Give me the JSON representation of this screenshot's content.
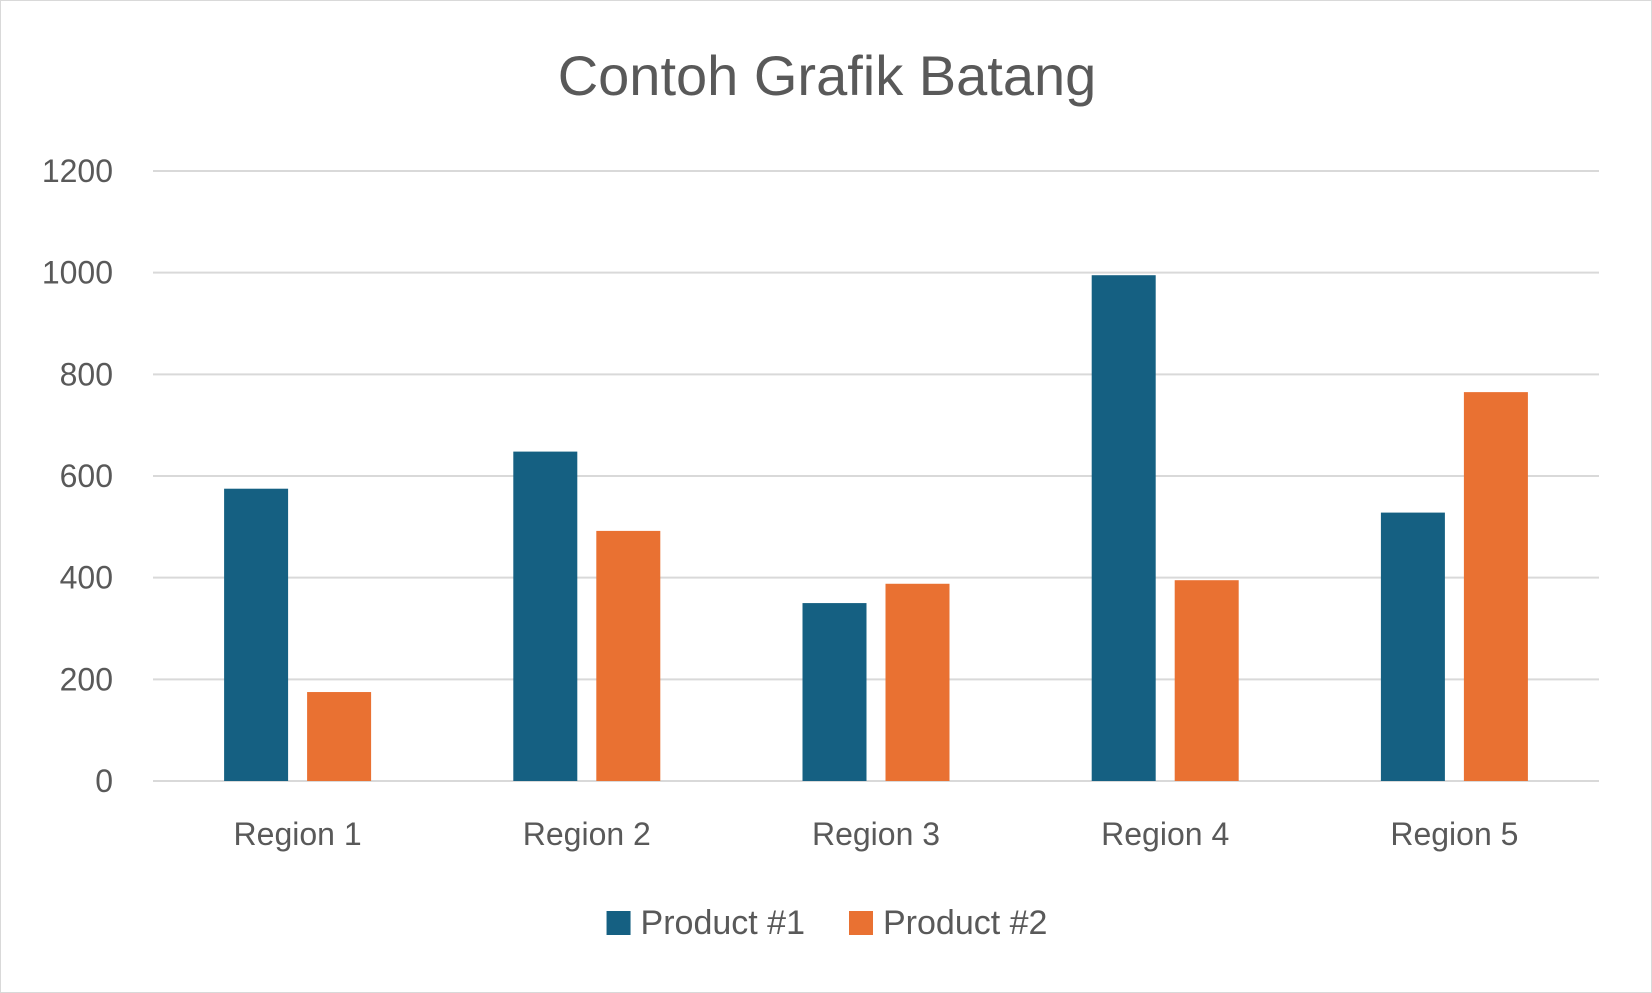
{
  "chart_data": {
    "type": "bar",
    "title": "Contoh Grafik Batang",
    "categories": [
      "Region 1",
      "Region 2",
      "Region 3",
      "Region 4",
      "Region 5"
    ],
    "series": [
      {
        "name": "Product #1",
        "color": "#156082",
        "values": [
          575,
          648,
          350,
          995,
          528
        ]
      },
      {
        "name": "Product #2",
        "color": "#E97132",
        "values": [
          175,
          492,
          388,
          395,
          765
        ]
      }
    ],
    "ylim": [
      0,
      1200
    ],
    "yticks": [
      0,
      200,
      400,
      600,
      800,
      1000,
      1200
    ],
    "grid": true,
    "legend_position": "bottom",
    "gridline_color": "#d9d9d9",
    "text_color": "#595959"
  }
}
